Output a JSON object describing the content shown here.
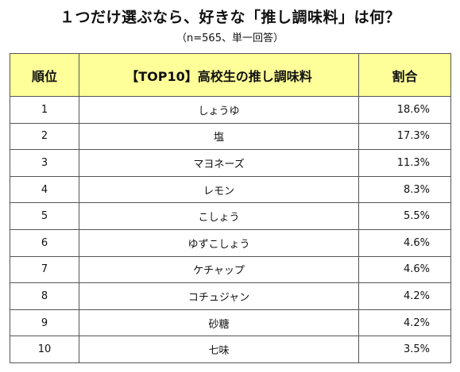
{
  "title": "１つだけ選ぶなら、好きな「推し調味料」は何？",
  "subtitle": "（n=565、単一回答）",
  "chart_data": {
    "type": "table",
    "title": "１つだけ選ぶなら、好きな「推し調味料」は何？",
    "subtitle": "（n=565、単一回答）",
    "columns": [
      "順位",
      "【TOP10】高校生の推し調味料",
      "割合"
    ],
    "rows": [
      {
        "rank": "1",
        "item": "しょうゆ",
        "share": "18.6%",
        "value": 18.6
      },
      {
        "rank": "2",
        "item": "塩",
        "share": "17.3%",
        "value": 17.3
      },
      {
        "rank": "3",
        "item": "マヨネーズ",
        "share": "11.3%",
        "value": 11.3
      },
      {
        "rank": "4",
        "item": "レモン",
        "share": "8.3%",
        "value": 8.3
      },
      {
        "rank": "5",
        "item": "こしょう",
        "share": "5.5%",
        "value": 5.5
      },
      {
        "rank": "6",
        "item": "ゆずこしょう",
        "share": "4.6%",
        "value": 4.6
      },
      {
        "rank": "7",
        "item": "ケチャップ",
        "share": "4.6%",
        "value": 4.6
      },
      {
        "rank": "8",
        "item": "コチュジャン",
        "share": "4.2%",
        "value": 4.2
      },
      {
        "rank": "9",
        "item": "砂糖",
        "share": "4.2%",
        "value": 4.2
      },
      {
        "rank": "10",
        "item": "七味",
        "share": "3.5%",
        "value": 3.5
      }
    ],
    "header_color": "#ffff99"
  }
}
